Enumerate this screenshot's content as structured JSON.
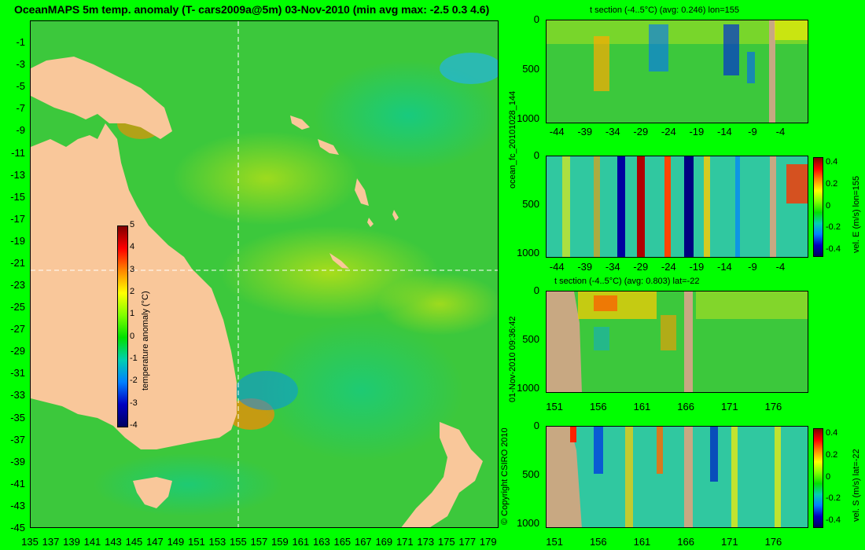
{
  "colors": {
    "page_bg": "#00ff00",
    "land": "#f9c79a",
    "land_section": "#c8a882",
    "ocean": "#3cc83c"
  },
  "icons": [
    "colorbar-icon",
    "crosshair-icon"
  ],
  "main_title": "OceanMAPS 5m temp. anomaly (T- cars2009a@5m) 03-Nov-2010 (min avg max: -2.5 0.3 4.6)",
  "side_labels": {
    "run_id": "ocean_fc_20101028_144",
    "forecast_time": "01-Nov-2010 09:36:42",
    "copyright": "© Copyright CSIRO 2010"
  },
  "chart_data": [
    {
      "type": "heatmap",
      "name": "map",
      "x_ticks": [
        "135",
        "137",
        "139",
        "141",
        "143",
        "145",
        "147",
        "149",
        "151",
        "153",
        "155",
        "157",
        "159",
        "161",
        "163",
        "165",
        "167",
        "169",
        "171",
        "173",
        "175",
        "177",
        "179"
      ],
      "y_ticks": [
        "-1",
        "-3",
        "-5",
        "-7",
        "-9",
        "-11",
        "-13",
        "-15",
        "-17",
        "-19",
        "-21",
        "-23",
        "-25",
        "-27",
        "-29",
        "-31",
        "-33",
        "-35",
        "-37",
        "-39",
        "-41",
        "-43",
        "-45"
      ],
      "xlim": [
        135,
        180
      ],
      "ylim": [
        -45,
        1
      ],
      "crosshair": {
        "lon": 155,
        "lat": -22
      },
      "colorbar": {
        "label": "temperature anomaly (°C)",
        "ticks": [
          "5",
          "4",
          "3",
          "2",
          "1",
          "0",
          "-1",
          "-2",
          "-3",
          "-4"
        ],
        "range": [
          -4,
          5
        ]
      }
    },
    {
      "type": "heatmap",
      "name": "t-section-lon",
      "title": "t section (-4..5°C) (avg: 0.246) lon=155",
      "x_ticks": [
        "-44",
        "-39",
        "-34",
        "-29",
        "-24",
        "-19",
        "-14",
        "-9",
        "-4"
      ],
      "y_ticks": [
        "0",
        "500",
        "1000"
      ],
      "xlim": [
        -46,
        1
      ],
      "ylim": [
        1050,
        0
      ]
    },
    {
      "type": "heatmap",
      "name": "vel-e-section",
      "x_ticks": [
        "-44",
        "-39",
        "-34",
        "-29",
        "-24",
        "-19",
        "-14",
        "-9",
        "-4"
      ],
      "y_ticks": [
        "0",
        "500",
        "1000"
      ],
      "xlim": [
        -46,
        1
      ],
      "ylim": [
        1050,
        0
      ],
      "colorbar": {
        "label": "vel. E (m/s) lon=155",
        "ticks": [
          "0.4",
          "0.2",
          "0",
          "-0.2",
          "-0.4"
        ],
        "range": [
          -0.45,
          0.45
        ]
      }
    },
    {
      "type": "heatmap",
      "name": "t-section-lat",
      "title": "t section (-4..5°C) (avg: 0.803) lat=-22",
      "x_ticks": [
        "151",
        "156",
        "161",
        "166",
        "171",
        "176"
      ],
      "y_ticks": [
        "0",
        "500",
        "1000"
      ],
      "xlim": [
        150,
        180
      ],
      "ylim": [
        1050,
        0
      ]
    },
    {
      "type": "heatmap",
      "name": "vel-s-section",
      "x_ticks": [
        "151",
        "156",
        "161",
        "166",
        "171",
        "176"
      ],
      "y_ticks": [
        "0",
        "500",
        "1000"
      ],
      "xlim": [
        150,
        180
      ],
      "ylim": [
        1050,
        0
      ],
      "colorbar": {
        "label": "vel. S (m/s) lat=-22",
        "ticks": [
          "0.4",
          "0.2",
          "0",
          "-0.2",
          "-0.4"
        ],
        "range": [
          -0.45,
          0.45
        ]
      }
    }
  ]
}
